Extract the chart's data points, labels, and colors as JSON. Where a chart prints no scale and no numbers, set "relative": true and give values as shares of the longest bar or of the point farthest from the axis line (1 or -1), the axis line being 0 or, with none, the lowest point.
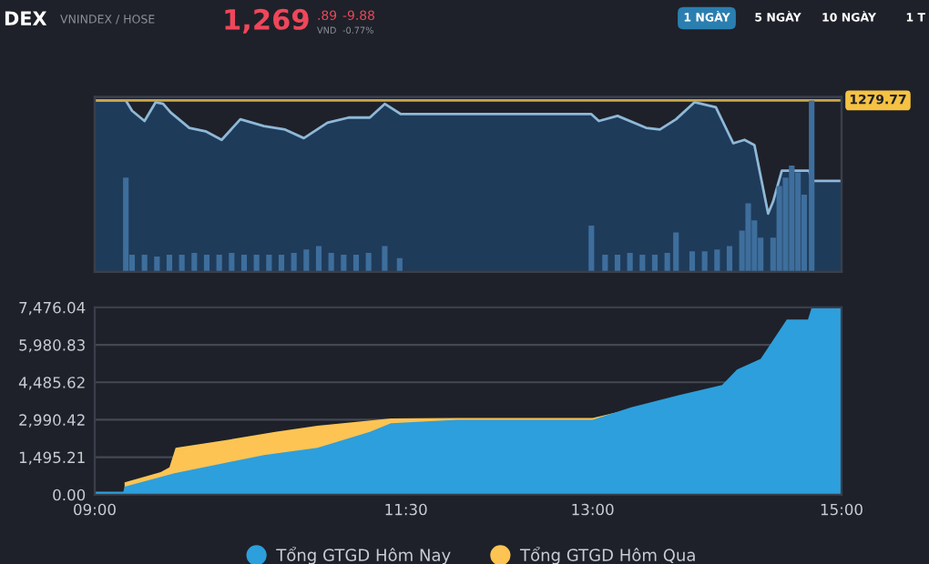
{
  "chart_data": [
    {
      "type": "area",
      "relative": true,
      "xlim": [
        9,
        15
      ],
      "tick_labels": false,
      "grid": false,
      "legend": false,
      "annotations": [
        "DEX",
        "VNINDEX / HOSE",
        "1,269",
        ".89",
        "VND",
        "-9.88",
        "-0.77%",
        "1 NGÀY",
        "5 NGÀY",
        "10 NGÀY",
        "1 T",
        {
          "text": "1279.77",
          "x": 15,
          "y": 1
        }
      ],
      "ref_lines": [
        {
          "axis": "y",
          "value": 1,
          "color": "#c8a74a",
          "line_style": "solid"
        }
      ],
      "series": [
        {
          "color": "#8fb8d8",
          "x": [
            9.0,
            9.25,
            9.3,
            9.4,
            9.49,
            9.55,
            9.61,
            9.76,
            9.89,
            10.02,
            10.17,
            10.36,
            10.53,
            10.68,
            10.87,
            11.04,
            11.21,
            11.33,
            11.46,
            12.99,
            13.05,
            13.2,
            13.43,
            13.54,
            13.67,
            13.82,
            13.99,
            14.13,
            14.22,
            14.3,
            14.41,
            14.45,
            14.52,
            14.74,
            14.76,
            15.0
          ],
          "values": [
            1.0,
            1.0,
            0.94,
            0.88,
            0.99,
            0.98,
            0.93,
            0.84,
            0.82,
            0.77,
            0.89,
            0.85,
            0.83,
            0.78,
            0.87,
            0.9,
            0.9,
            0.98,
            0.92,
            0.92,
            0.88,
            0.91,
            0.84,
            0.83,
            0.89,
            0.99,
            0.96,
            0.75,
            0.77,
            0.74,
            0.34,
            0.41,
            0.59,
            0.59,
            0.53,
            0.53
          ]
        }
      ]
    },
    {
      "type": "bar",
      "relative": true,
      "xlim": [
        9,
        15
      ],
      "tick_labels": false,
      "grid": false,
      "legend": false,
      "series": [
        {
          "color": "#3e6e9c",
          "x": [
            9.25,
            9.3,
            9.4,
            9.5,
            9.6,
            9.7,
            9.8,
            9.9,
            10.0,
            10.1,
            10.2,
            10.3,
            10.4,
            10.5,
            10.6,
            10.7,
            10.8,
            10.9,
            11.0,
            11.1,
            11.2,
            11.33,
            11.45,
            12.99,
            13.1,
            13.2,
            13.3,
            13.4,
            13.5,
            13.6,
            13.67,
            13.8,
            13.9,
            14.0,
            14.1,
            14.2,
            14.25,
            14.3,
            14.35,
            14.45,
            14.5,
            14.55,
            14.6,
            14.65,
            14.7,
            14.76
          ],
          "values": [
            0.55,
            0.1,
            0.1,
            0.09,
            0.1,
            0.1,
            0.11,
            0.1,
            0.1,
            0.11,
            0.1,
            0.1,
            0.1,
            0.1,
            0.11,
            0.13,
            0.15,
            0.11,
            0.1,
            0.1,
            0.11,
            0.15,
            0.08,
            0.27,
            0.1,
            0.1,
            0.11,
            0.1,
            0.1,
            0.11,
            0.23,
            0.12,
            0.12,
            0.13,
            0.15,
            0.24,
            0.4,
            0.3,
            0.2,
            0.2,
            0.5,
            0.55,
            0.62,
            0.58,
            0.45,
            1.0
          ]
        }
      ]
    },
    {
      "type": "area",
      "xlim": [
        9,
        15
      ],
      "ylim": [
        0,
        7476.04
      ],
      "grid": "y",
      "legend": "bottom",
      "xticks": [
        {
          "value": 9,
          "label": "09:00"
        },
        {
          "value": 11.5,
          "label": "11:30"
        },
        {
          "value": 13,
          "label": "13:00"
        },
        {
          "value": 15,
          "label": "15:00"
        }
      ],
      "yticks": [
        {
          "value": 0,
          "label": "0.00"
        },
        {
          "value": 1495.21,
          "label": "1,495.21"
        },
        {
          "value": 2990.42,
          "label": "2,990.42"
        },
        {
          "value": 4485.62,
          "label": "4,485.62"
        },
        {
          "value": 5980.83,
          "label": "5,980.83"
        },
        {
          "value": 7476.04,
          "label": "7,476.04"
        }
      ],
      "series": [
        {
          "name": "Tổng GTGD Hôm Qua",
          "color": "#fdc453",
          "x": [
            9.24,
            9.53,
            9.6,
            9.65,
            10.07,
            10.45,
            10.79,
            11.38,
            11.91,
            13.0,
            13.31
          ],
          "values": [
            490,
            900,
            1090,
            1870,
            2190,
            2510,
            2750,
            3040,
            3060,
            3060,
            3420
          ]
        },
        {
          "name": "Tổng GTGD Hôm Nay",
          "color": "#2d9fdc",
          "x": [
            9.0,
            9.23,
            9.24,
            9.64,
            10.07,
            10.36,
            10.79,
            11.21,
            11.38,
            11.91,
            13.0,
            13.31,
            13.69,
            14.04,
            14.16,
            14.35,
            14.56,
            14.73,
            14.76,
            15.0
          ],
          "values": [
            120,
            120,
            320,
            850,
            1290,
            1580,
            1870,
            2510,
            2850,
            2990,
            2990,
            3490,
            3970,
            4380,
            4990,
            5420,
            6990,
            6990,
            7470,
            7470
          ]
        }
      ]
    }
  ]
}
